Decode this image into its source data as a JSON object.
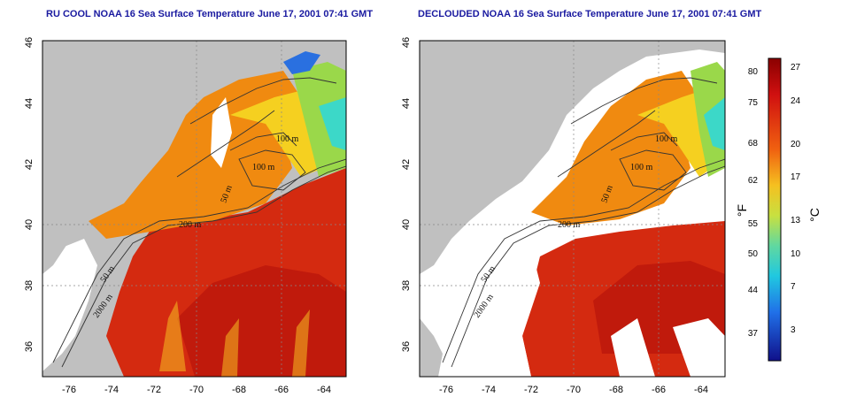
{
  "panels": [
    {
      "title": "RU COOL NOAA 16 Sea Surface Temperature June 17, 2001 07:41 GMT",
      "contour_labels": [
        "100 m",
        "100 m",
        "50 m",
        "200 m",
        "50 m",
        "2000 m"
      ]
    },
    {
      "title": "DECLOUDED NOAA 16 Sea Surface Temperature June 17, 2001 07:41 GMT",
      "contour_labels": [
        "100 m",
        "100 m",
        "50 m",
        "200 m",
        "50 m",
        "2000 m"
      ]
    }
  ],
  "axes": {
    "lon_ticks": [
      "-76",
      "-74",
      "-72",
      "-70",
      "-68",
      "-66",
      "-64"
    ],
    "lat_ticks": [
      "46",
      "44",
      "42",
      "40",
      "38",
      "36"
    ]
  },
  "colorbar": {
    "fahrenheit_ticks": [
      "80",
      "75",
      "68",
      "62",
      "55",
      "50",
      "44",
      "37"
    ],
    "celsius_ticks": [
      "27",
      "24",
      "20",
      "17",
      "13",
      "10",
      "7",
      "3"
    ],
    "fahrenheit_unit": "°F",
    "celsius_unit": "°C"
  },
  "colors": {
    "land": "#c0c0c0",
    "cloud": "#ffffff",
    "warm": "#d42a10",
    "hot": "#c01a0c",
    "orange": "#f08a10",
    "yellow": "#f5d020",
    "green": "#9ad84a",
    "cyan": "#3cd8c8",
    "title": "#1a1aa0"
  }
}
